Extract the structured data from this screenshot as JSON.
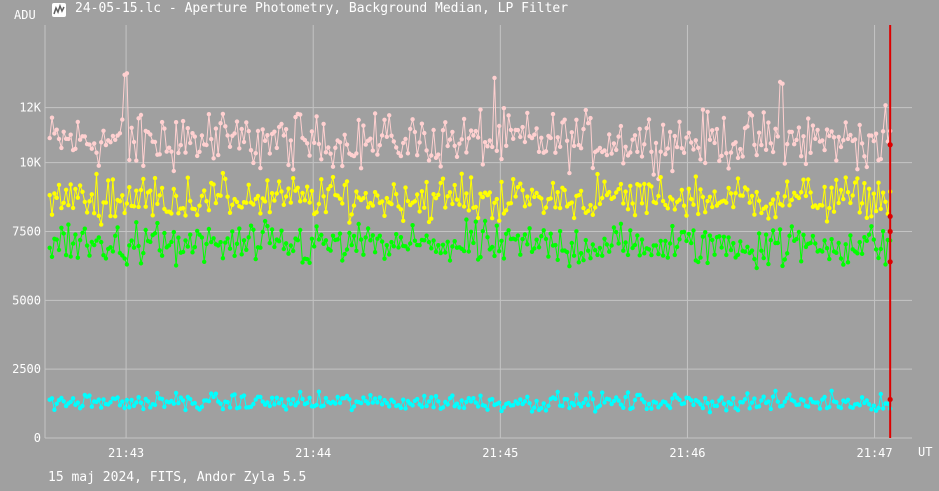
{
  "window": {
    "title": "24-05-15.lc - Aperture Photometry, Background Median, LP Filter",
    "icon": "light-curve-icon"
  },
  "footer": "15 maj 2024, FITS, Andor Zyla 5.5",
  "colors": {
    "background": "#a0a0a0",
    "grid": "#c4c4c4",
    "pink": "#ffd0d0",
    "yellow": "#ffff00",
    "green": "#00ff00",
    "cyan": "#00ffff",
    "cursor": "#dd0000"
  },
  "chart_data": {
    "type": "scatter",
    "title": "24-05-15.lc - Aperture Photometry, Background Median, LP Filter",
    "ylabel": "ADU",
    "xlabel": "UT",
    "ylim": [
      0,
      15000
    ],
    "xlim": [
      "21:42:34",
      "21:47:12"
    ],
    "y_ticks": [
      0,
      2500,
      5000,
      7500,
      10000,
      12000
    ],
    "y_tick_labels": [
      "0",
      "2500",
      "5000",
      "7500",
      "10K",
      "12K"
    ],
    "x_ticks": [
      "21:43",
      "21:44",
      "21:45",
      "21:46",
      "21:47"
    ],
    "grid": true,
    "cursor_time": "21:47:05",
    "cursor_values": [
      10650,
      8050,
      7500,
      6400,
      1400
    ],
    "series": [
      {
        "color": "#ffd0d0",
        "mean": 10800,
        "spread": 700,
        "spike_level": 12500,
        "spike_times": [
          "21:43:00",
          "21:44:58",
          "21:46:30"
        ]
      },
      {
        "color": "#ffff00",
        "mean": 8700,
        "spread": 550
      },
      {
        "color": "#00ff00",
        "mean": 7000,
        "spread": 550
      },
      {
        "color": "#00ffff",
        "mean": 1300,
        "spread": 220
      }
    ]
  }
}
